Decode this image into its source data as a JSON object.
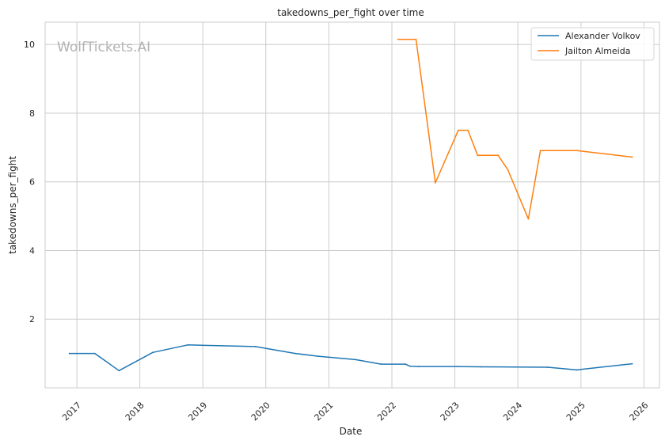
{
  "chart_data": {
    "type": "line",
    "title": "takedowns_per_fight over time",
    "xlabel": "Date",
    "ylabel": "takedowns_per_fight",
    "watermark": "WolfTickets.AI",
    "xlim": [
      "2016-07-01",
      "2026-04-01"
    ],
    "ylim": [
      0,
      10.65
    ],
    "x_ticks": [
      "2017",
      "2018",
      "2019",
      "2020",
      "2021",
      "2022",
      "2023",
      "2024",
      "2025",
      "2026"
    ],
    "y_ticks": [
      2,
      4,
      6,
      8,
      10
    ],
    "grid": true,
    "legend_position": "top-right",
    "series": [
      {
        "name": "Alexander Volkov",
        "color": "#1f77b4",
        "points": [
          [
            "2016-11-19",
            1.0
          ],
          [
            "2017-04-15",
            1.0
          ],
          [
            "2017-09-02",
            0.5
          ],
          [
            "2018-03-17",
            1.03
          ],
          [
            "2018-10-06",
            1.25
          ],
          [
            "2019-11-02",
            1.2
          ],
          [
            "2020-06-20",
            1.0
          ],
          [
            "2020-10-31",
            0.92
          ],
          [
            "2021-06-05",
            0.82
          ],
          [
            "2021-10-30",
            0.69
          ],
          [
            "2022-03-19",
            0.69
          ],
          [
            "2022-04-16",
            0.63
          ],
          [
            "2022-06-04",
            0.62
          ],
          [
            "2023-01-14",
            0.62
          ],
          [
            "2023-06-03",
            0.61
          ],
          [
            "2024-06-22",
            0.6
          ],
          [
            "2024-12-07",
            0.52
          ],
          [
            "2025-10-25",
            0.7
          ]
        ]
      },
      {
        "name": "Jailton Almeida",
        "color": "#ff7f0e",
        "points": [
          [
            "2022-02-05",
            10.15
          ],
          [
            "2022-05-21",
            10.15
          ],
          [
            "2022-09-10",
            5.97
          ],
          [
            "2023-01-21",
            7.5
          ],
          [
            "2023-03-18",
            7.5
          ],
          [
            "2023-05-13",
            6.77
          ],
          [
            "2023-09-09",
            6.77
          ],
          [
            "2023-11-04",
            6.35
          ],
          [
            "2024-03-02",
            4.92
          ],
          [
            "2024-05-11",
            6.91
          ],
          [
            "2024-12-07",
            6.91
          ],
          [
            "2025-10-25",
            6.72
          ]
        ]
      }
    ]
  }
}
